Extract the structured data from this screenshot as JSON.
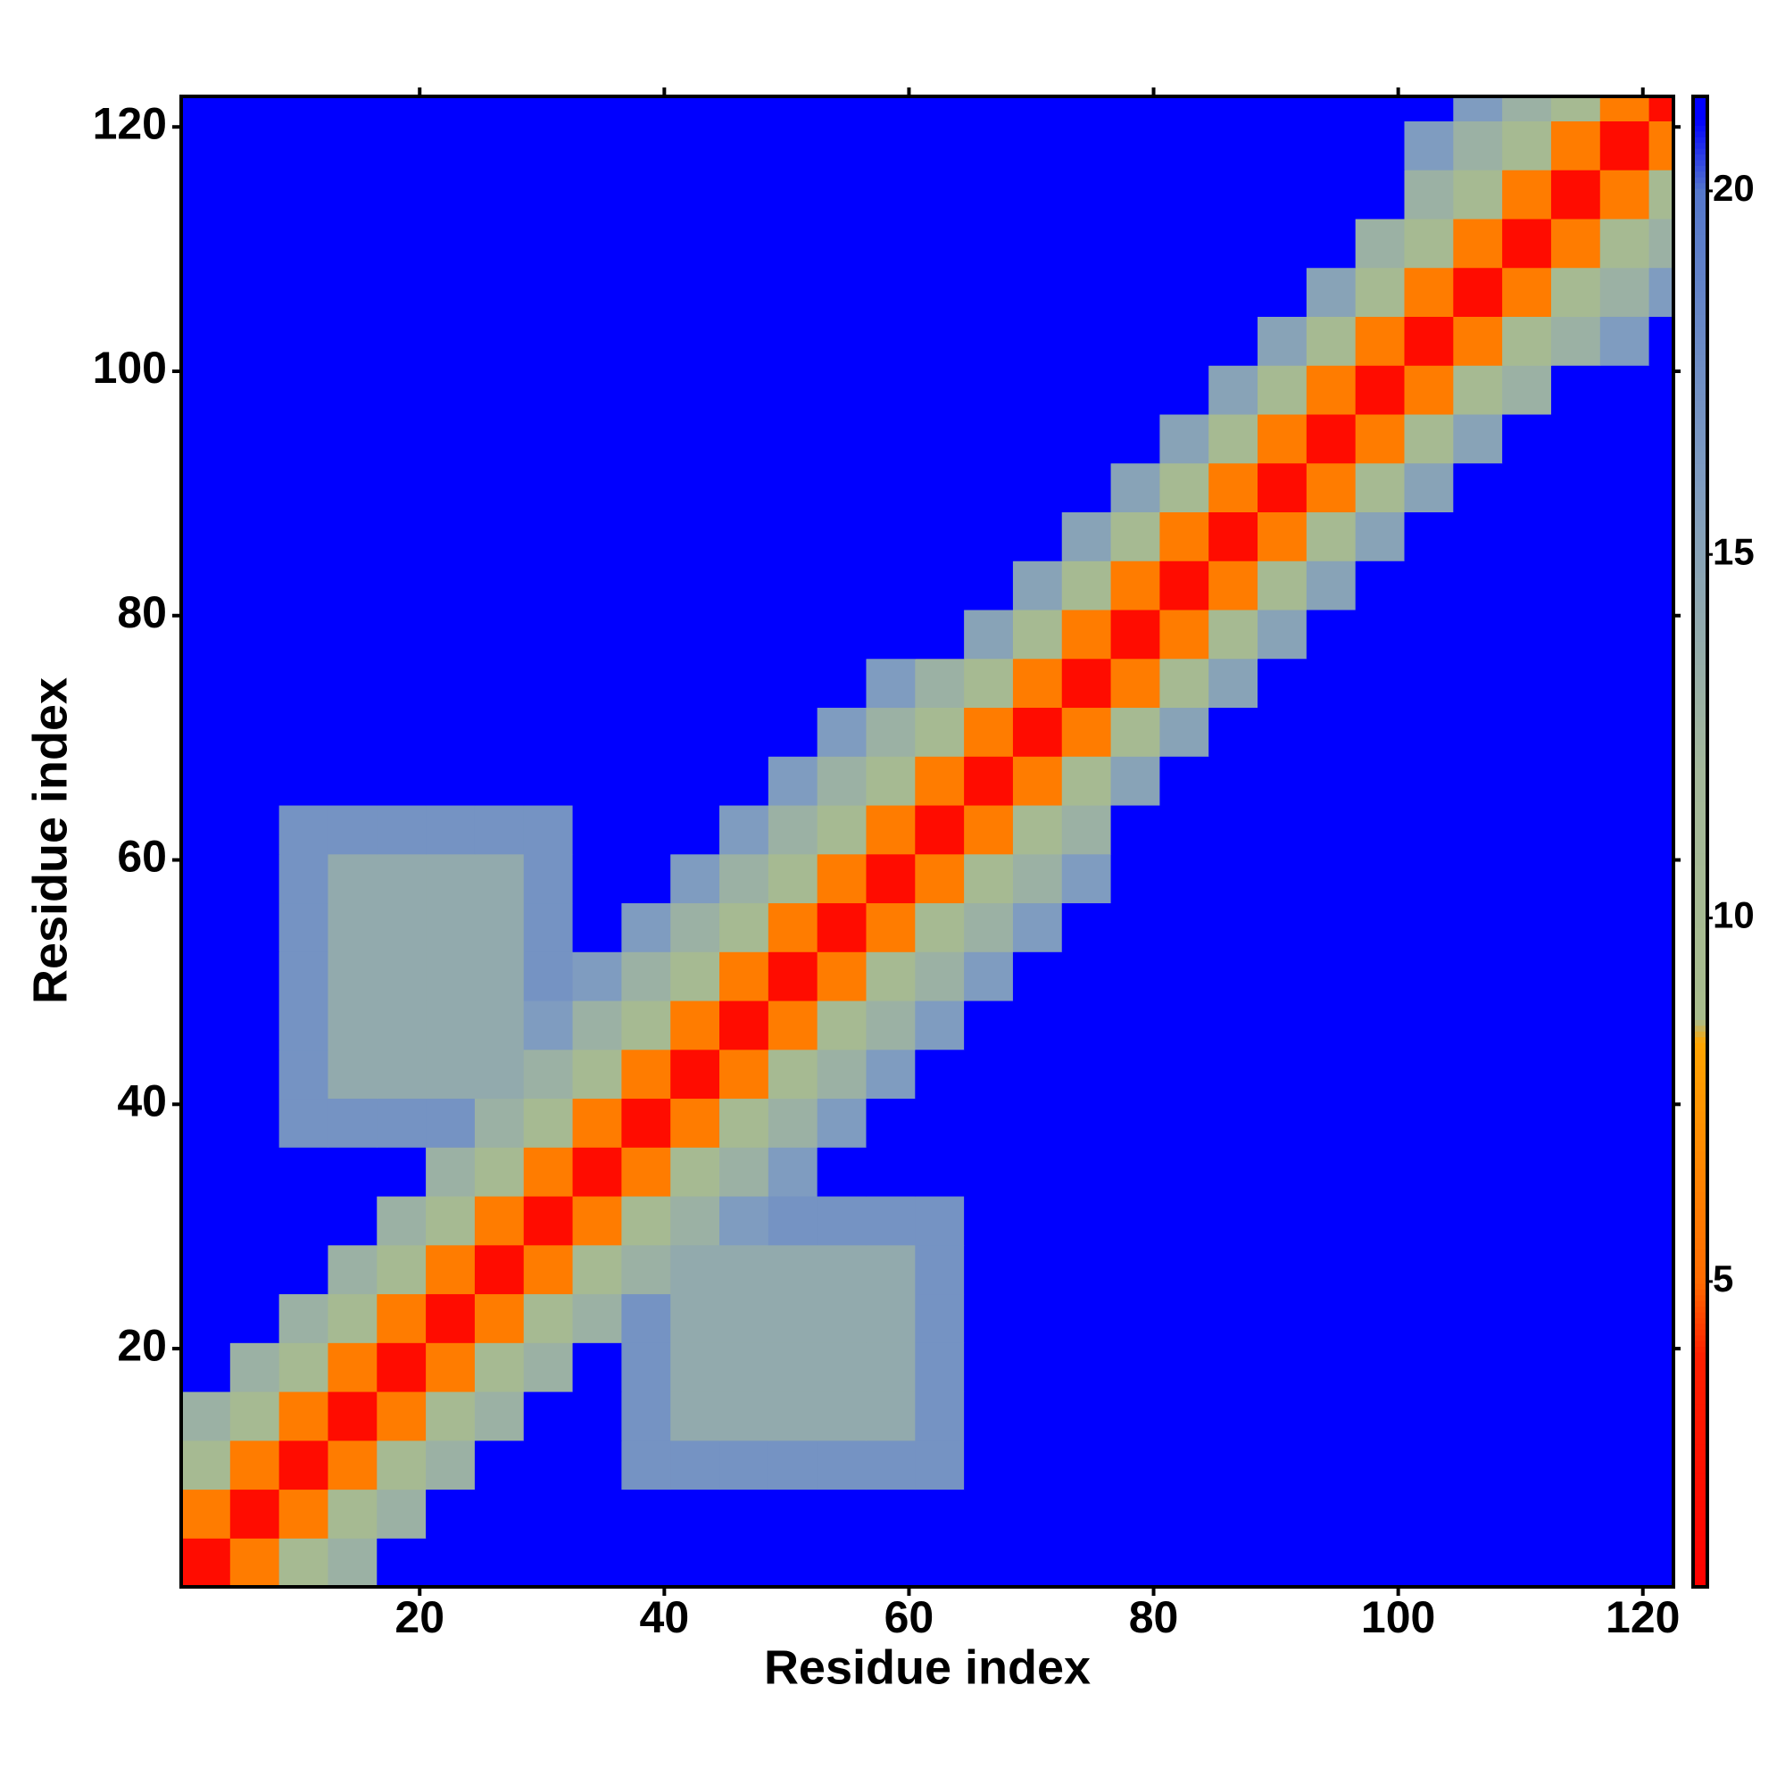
{
  "chart_data": {
    "type": "heatmap",
    "x_label": "Residue index",
    "y_label": "Residue index",
    "x": [
      0.5,
      4.5,
      8.5,
      12.5,
      16.5,
      20.5,
      24.5,
      28.5,
      32.5,
      36.5,
      40.5,
      44.5,
      48.5,
      52.5,
      56.5,
      60.5,
      64.5,
      68.5,
      72.5,
      76.5,
      80.5,
      84.5,
      88.5,
      92.5,
      96.5,
      100.5,
      104.5,
      108.5,
      112.5,
      116.5,
      120.5,
      122.5
    ],
    "y": [
      0.5,
      4.5,
      8.5,
      12.5,
      16.5,
      20.5,
      24.5,
      28.5,
      32.5,
      36.5,
      40.5,
      44.5,
      48.5,
      52.5,
      56.5,
      60.5,
      64.5,
      68.5,
      72.5,
      76.5,
      80.5,
      84.5,
      88.5,
      92.5,
      96.5,
      100.5,
      104.5,
      108.5,
      112.5,
      116.5,
      120.5,
      122.5
    ],
    "z": [
      [
        2,
        6,
        10,
        13,
        21,
        21,
        21,
        21,
        21,
        21,
        21,
        21,
        21,
        21,
        21,
        21,
        21,
        21,
        21,
        21,
        21,
        21,
        21,
        21,
        21,
        21,
        21,
        21,
        21,
        21,
        21
      ],
      [
        6,
        2,
        6,
        10,
        13,
        21,
        21,
        21,
        21,
        21,
        21,
        21,
        21,
        21,
        21,
        21,
        21,
        21,
        21,
        21,
        21,
        21,
        21,
        21,
        21,
        21,
        21,
        21,
        21,
        21,
        21
      ],
      [
        10,
        6,
        2,
        6,
        10,
        13,
        21,
        21,
        21,
        17,
        17,
        17,
        17,
        17,
        17,
        17,
        21,
        21,
        21,
        21,
        21,
        21,
        21,
        21,
        21,
        21,
        21,
        21,
        21,
        21,
        21
      ],
      [
        13,
        10,
        6,
        2,
        6,
        10,
        13,
        21,
        21,
        17,
        14,
        14,
        14,
        14,
        14,
        17,
        21,
        21,
        21,
        21,
        21,
        21,
        21,
        21,
        21,
        21,
        21,
        21,
        21,
        21,
        21
      ],
      [
        21,
        13,
        10,
        6,
        2,
        6,
        10,
        13,
        21,
        17,
        14,
        14,
        14,
        14,
        14,
        17,
        21,
        21,
        21,
        21,
        21,
        21,
        21,
        21,
        21,
        21,
        21,
        21,
        21,
        21,
        21
      ],
      [
        21,
        21,
        13,
        10,
        6,
        2,
        6,
        10,
        13,
        17,
        14,
        14,
        14,
        14,
        14,
        17,
        21,
        21,
        21,
        21,
        21,
        21,
        21,
        21,
        21,
        21,
        21,
        21,
        21,
        21,
        21
      ],
      [
        21,
        21,
        21,
        13,
        10,
        6,
        2,
        6,
        10,
        13,
        14,
        14,
        14,
        14,
        14,
        17,
        21,
        21,
        21,
        21,
        21,
        21,
        21,
        21,
        21,
        21,
        21,
        21,
        21,
        21,
        21
      ],
      [
        21,
        21,
        21,
        21,
        13,
        10,
        6,
        2,
        6,
        10,
        13,
        16,
        17,
        17,
        17,
        17,
        21,
        21,
        21,
        21,
        21,
        21,
        21,
        21,
        21,
        21,
        21,
        21,
        21,
        21,
        21
      ],
      [
        21,
        21,
        21,
        21,
        21,
        13,
        10,
        6,
        2,
        6,
        10,
        13,
        16,
        21,
        21,
        21,
        21,
        21,
        21,
        21,
        21,
        21,
        21,
        21,
        21,
        21,
        21,
        21,
        21,
        21,
        21
      ],
      [
        21,
        21,
        17,
        17,
        17,
        17,
        13,
        10,
        6,
        2,
        6,
        10,
        13,
        16,
        21,
        21,
        21,
        21,
        21,
        21,
        21,
        21,
        21,
        21,
        21,
        21,
        21,
        21,
        21,
        21,
        21
      ],
      [
        21,
        21,
        17,
        14,
        14,
        14,
        14,
        13,
        10,
        6,
        2,
        6,
        10,
        13,
        16,
        21,
        21,
        21,
        21,
        21,
        21,
        21,
        21,
        21,
        21,
        21,
        21,
        21,
        21,
        21,
        21
      ],
      [
        21,
        21,
        17,
        14,
        14,
        14,
        14,
        16,
        13,
        10,
        6,
        2,
        6,
        10,
        13,
        16,
        21,
        21,
        21,
        21,
        21,
        21,
        21,
        21,
        21,
        21,
        21,
        21,
        21,
        21,
        21
      ],
      [
        21,
        21,
        17,
        14,
        14,
        14,
        14,
        17,
        16,
        13,
        10,
        6,
        2,
        6,
        10,
        13,
        16,
        21,
        21,
        21,
        21,
        21,
        21,
        21,
        21,
        21,
        21,
        21,
        21,
        21,
        21
      ],
      [
        21,
        21,
        17,
        14,
        14,
        14,
        14,
        17,
        21,
        16,
        13,
        10,
        6,
        2,
        6,
        10,
        13,
        16,
        21,
        21,
        21,
        21,
        21,
        21,
        21,
        21,
        21,
        21,
        21,
        21,
        21
      ],
      [
        21,
        21,
        17,
        14,
        14,
        14,
        14,
        17,
        21,
        21,
        16,
        13,
        10,
        6,
        2,
        6,
        10,
        13,
        16,
        21,
        21,
        21,
        21,
        21,
        21,
        21,
        21,
        21,
        21,
        21,
        21
      ],
      [
        21,
        21,
        17,
        17,
        17,
        17,
        17,
        17,
        21,
        21,
        21,
        16,
        13,
        10,
        6,
        2,
        6,
        10,
        13,
        21,
        21,
        21,
        21,
        21,
        21,
        21,
        21,
        21,
        21,
        21,
        21
      ],
      [
        21,
        21,
        21,
        21,
        21,
        21,
        21,
        21,
        21,
        21,
        21,
        21,
        16,
        13,
        10,
        6,
        2,
        6,
        10,
        15,
        21,
        21,
        21,
        21,
        21,
        21,
        21,
        21,
        21,
        21,
        21
      ],
      [
        21,
        21,
        21,
        21,
        21,
        21,
        21,
        21,
        21,
        21,
        21,
        21,
        21,
        16,
        13,
        10,
        6,
        2,
        6,
        10,
        15,
        21,
        21,
        21,
        21,
        21,
        21,
        21,
        21,
        21,
        21
      ],
      [
        21,
        21,
        21,
        21,
        21,
        21,
        21,
        21,
        21,
        21,
        21,
        21,
        21,
        21,
        16,
        13,
        10,
        6,
        2,
        6,
        10,
        15,
        21,
        21,
        21,
        21,
        21,
        21,
        21,
        21,
        21
      ],
      [
        21,
        21,
        21,
        21,
        21,
        21,
        21,
        21,
        21,
        21,
        21,
        21,
        21,
        21,
        21,
        21,
        15,
        10,
        6,
        2,
        6,
        10,
        15,
        21,
        21,
        21,
        21,
        21,
        21,
        21,
        21
      ],
      [
        21,
        21,
        21,
        21,
        21,
        21,
        21,
        21,
        21,
        21,
        21,
        21,
        21,
        21,
        21,
        21,
        21,
        15,
        10,
        6,
        2,
        6,
        10,
        15,
        21,
        21,
        21,
        21,
        21,
        21,
        21
      ],
      [
        21,
        21,
        21,
        21,
        21,
        21,
        21,
        21,
        21,
        21,
        21,
        21,
        21,
        21,
        21,
        21,
        21,
        21,
        15,
        10,
        6,
        2,
        6,
        10,
        15,
        21,
        21,
        21,
        21,
        21,
        21
      ],
      [
        21,
        21,
        21,
        21,
        21,
        21,
        21,
        21,
        21,
        21,
        21,
        21,
        21,
        21,
        21,
        21,
        21,
        21,
        21,
        15,
        10,
        6,
        2,
        6,
        10,
        15,
        21,
        21,
        21,
        21,
        21
      ],
      [
        21,
        21,
        21,
        21,
        21,
        21,
        21,
        21,
        21,
        21,
        21,
        21,
        21,
        21,
        21,
        21,
        21,
        21,
        21,
        21,
        15,
        10,
        6,
        2,
        6,
        10,
        15,
        21,
        21,
        21,
        21
      ],
      [
        21,
        21,
        21,
        21,
        21,
        21,
        21,
        21,
        21,
        21,
        21,
        21,
        21,
        21,
        21,
        21,
        21,
        21,
        21,
        21,
        21,
        15,
        10,
        6,
        2,
        6,
        10,
        13,
        21,
        21,
        21
      ],
      [
        21,
        21,
        21,
        21,
        21,
        21,
        21,
        21,
        21,
        21,
        21,
        21,
        21,
        21,
        21,
        21,
        21,
        21,
        21,
        21,
        21,
        21,
        15,
        10,
        6,
        2,
        6,
        10,
        13,
        16,
        21
      ],
      [
        21,
        21,
        21,
        21,
        21,
        21,
        21,
        21,
        21,
        21,
        21,
        21,
        21,
        21,
        21,
        21,
        21,
        21,
        21,
        21,
        21,
        21,
        21,
        15,
        10,
        6,
        2,
        6,
        10,
        13,
        16
      ],
      [
        21,
        21,
        21,
        21,
        21,
        21,
        21,
        21,
        21,
        21,
        21,
        21,
        21,
        21,
        21,
        21,
        21,
        21,
        21,
        21,
        21,
        21,
        21,
        21,
        13,
        10,
        6,
        2,
        6,
        10,
        13
      ],
      [
        21,
        21,
        21,
        21,
        21,
        21,
        21,
        21,
        21,
        21,
        21,
        21,
        21,
        21,
        21,
        21,
        21,
        21,
        21,
        21,
        21,
        21,
        21,
        21,
        21,
        13,
        10,
        6,
        2,
        6,
        10
      ],
      [
        21,
        21,
        21,
        21,
        21,
        21,
        21,
        21,
        21,
        21,
        21,
        21,
        21,
        21,
        21,
        21,
        21,
        21,
        21,
        21,
        21,
        21,
        21,
        21,
        21,
        16,
        13,
        10,
        6,
        2,
        6
      ],
      [
        21,
        21,
        21,
        21,
        21,
        21,
        21,
        21,
        21,
        21,
        21,
        21,
        21,
        21,
        21,
        21,
        21,
        21,
        21,
        21,
        21,
        21,
        21,
        21,
        21,
        21,
        16,
        13,
        10,
        6,
        2
      ]
    ],
    "xlim": [
      0.5,
      122.5
    ],
    "ylim": [
      0.5,
      122.5
    ],
    "xticks": [
      20,
      40,
      60,
      80,
      100,
      120
    ],
    "yticks": [
      20,
      40,
      60,
      80,
      100,
      120
    ],
    "zlim": [
      0.8,
      21.3
    ],
    "zticks": [
      5,
      10,
      15,
      20
    ],
    "colorscale": [
      [
        0.8,
        "#ff0000"
      ],
      [
        4,
        "#ff2000"
      ],
      [
        5,
        "#ff6a00"
      ],
      [
        8.3,
        "#ffa500"
      ],
      [
        8.6,
        "#a8bc8c"
      ],
      [
        12,
        "#a4b89a"
      ],
      [
        16,
        "#7f9cc0"
      ],
      [
        20,
        "#5577cc"
      ],
      [
        21,
        "#0000ff"
      ]
    ]
  }
}
